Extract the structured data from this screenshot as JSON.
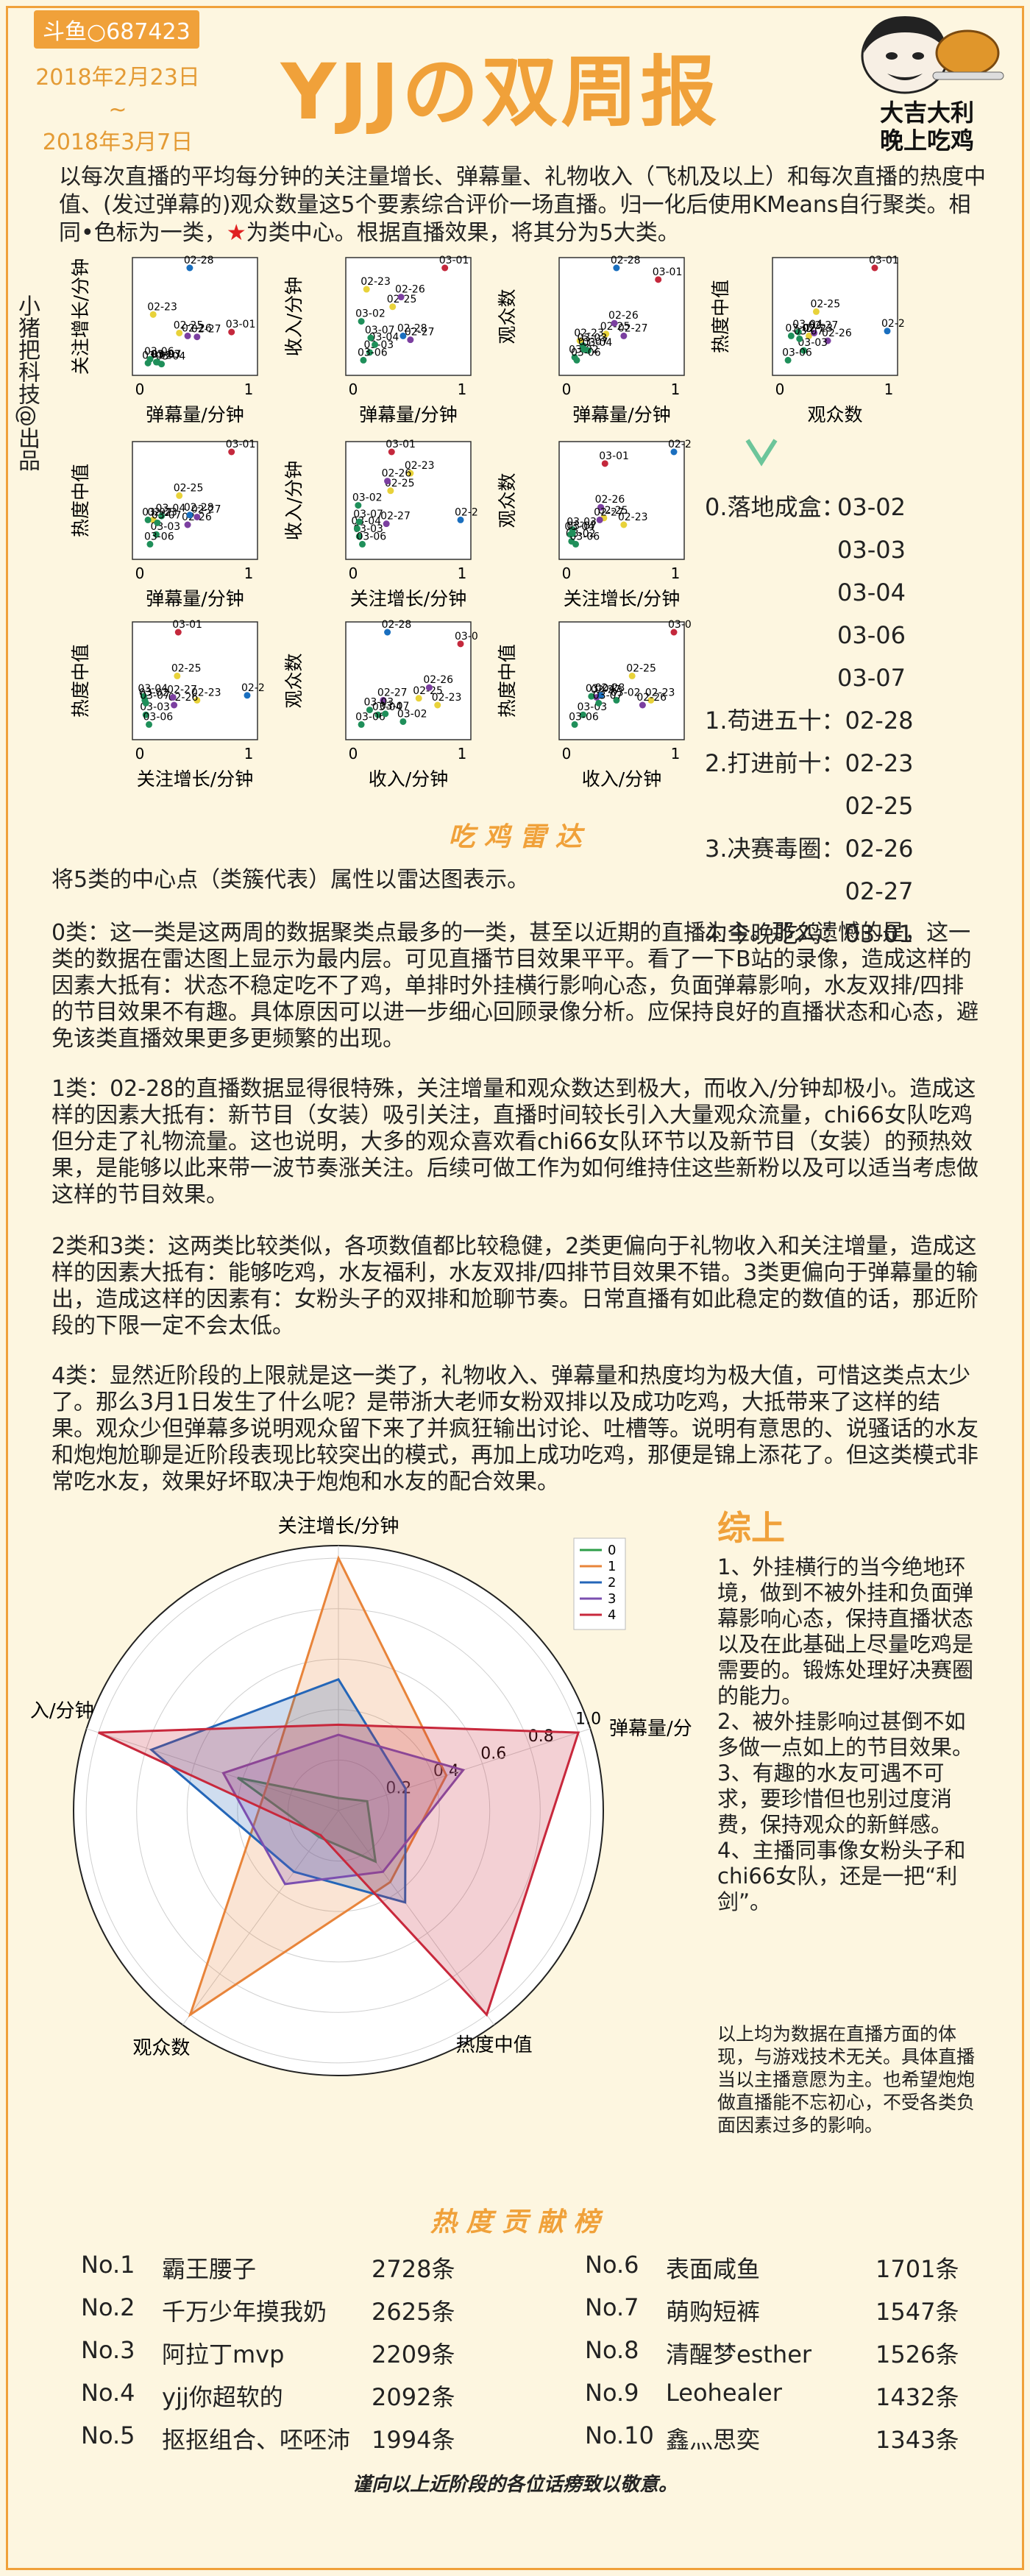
{
  "header": {
    "badge": "斗鱼○687423",
    "date_start": "2018年2月23日",
    "date_sep": "~",
    "date_end": "2018年3月7日",
    "title": "YJJの双周报",
    "mascot_line1": "大吉大利",
    "mascot_line2": "晚上吃鸡"
  },
  "intro": {
    "text_a": "以每次直播的平均每分钟的关注量增长、弹幕量、礼物收入（飞机及以上）和每次直播的热度中值、(发过弹幕的)观众数量这5个要素综合评价一场直播。归一化后使用KMeans自行聚类。相同",
    "dot": "•",
    "text_b": "色标为一类，",
    "star": "★",
    "text_c": "为类中心。根据直播效果，将其分为5大类。"
  },
  "sidebar": "小猪把科技@出品",
  "colors": [
    "#1f8f5a",
    "#1a6fbf",
    "#e8d23a",
    "#7b3fa0",
    "#c4283c",
    "#2b2b6a"
  ],
  "scatter": {
    "dates": [
      "02-23",
      "02-25",
      "02-26",
      "02-27",
      "02-28",
      "03-01",
      "03-02",
      "03-03",
      "03-04",
      "03-06",
      "03-07"
    ],
    "cluster": [
      2,
      2,
      3,
      3,
      1,
      4,
      0,
      0,
      0,
      0,
      0
    ],
    "metrics": {
      "follow": [
        0.52,
        0.33,
        0.3,
        0.29,
        1.0,
        0.34,
        0.02,
        0.03,
        0.01,
        0.06,
        0.03
      ],
      "danmaku": [
        0.1,
        0.35,
        0.43,
        0.52,
        0.45,
        0.85,
        0.05,
        0.13,
        0.18,
        0.07,
        0.14
      ],
      "gift": [
        0.78,
        0.6,
        0.7,
        0.26,
        0.3,
        1.0,
        0.45,
        0.13,
        0.21,
        0.05,
        0.28
      ],
      "viewers": [
        0.25,
        0.32,
        0.43,
        0.3,
        1.0,
        0.88,
        0.08,
        0.2,
        0.15,
        0.05,
        0.16
      ],
      "heat": [
        0.3,
        0.55,
        0.25,
        0.33,
        0.35,
        1.0,
        0.3,
        0.15,
        0.34,
        0.05,
        0.27
      ]
    },
    "axis_labels": {
      "follow": "关注增长/分钟",
      "danmaku": "弹幕量/分钟",
      "gift": "收入/分钟",
      "viewers": "观众数",
      "heat": "热度中值"
    },
    "tick_0": "0",
    "tick_1": "1"
  },
  "clusters": [
    {
      "label": "0.落地成盒：",
      "dates": [
        "03-02",
        "03-03",
        "03-04",
        "03-06",
        "03-07"
      ]
    },
    {
      "label": "1.苟进五十：",
      "dates": [
        "02-28"
      ]
    },
    {
      "label": "2.打进前十：",
      "dates": [
        "02-23",
        "02-25"
      ]
    },
    {
      "label": "3.决赛毒圈：",
      "dates": [
        "02-26",
        "02-27"
      ]
    },
    {
      "label": "4.今晚吃鸡：",
      "dates": [
        "03-01"
      ]
    }
  ],
  "radar_section": {
    "title": "吃 鸡 雷 达",
    "lead": "将5类的中心点（类簇代表）属性以雷达图表示。",
    "p0": "0类：这一类是这两周的数据聚类点最多的一类，甚至以近期的直播为主。那么遗憾的是，这一类的数据在雷达图上显示为最内层。可见直播节目效果平平。看了一下B站的录像，造成这样的因素大抵有：状态不稳定吃不了鸡，单排时外挂横行影响心态，负面弹幕影响，水友双排/四排的节目效果不有趣。具体原因可以进一步细心回顾录像分析。应保持良好的直播状态和心态，避免该类直播效果更多更频繁的出现。",
    "p1": "1类：02-28的直播数据显得很特殊，关注增量和观众数达到极大，而收入/分钟却极小。造成这样的因素大抵有：新节目（女装）吸引关注，直播时间较长引入大量观众流量，chi66女队吃鸡但分走了礼物流量。这也说明，大多的观众喜欢看chi66女队环节以及新节目（女装）的预热效果，是能够以此来带一波节奏涨关注。后续可做工作为如何维持住这些新粉以及可以适当考虑做这样的节目效果。",
    "p23": "2类和3类：这两类比较类似，各项数值都比较稳健，2类更偏向于礼物收入和关注增量，造成这样的因素大抵有：能够吃鸡，水友福利，水友双排/四排节目效果不错。3类更偏向于弹幕量的输出，造成这样的因素有：女粉头子的双排和尬聊节奏。日常直播有如此稳定的数值的话，那近阶段的下限一定不会太低。",
    "p4": "4类：显然近阶段的上限就是这一类了，礼物收入、弹幕量和热度均为极大值，可惜这类点太少了。那么3月1日发生了什么呢？是带浙大老师女粉双排以及成功吃鸡，大抵带来了这样的结果。观众少但弹幕多说明观众留下来了并疯狂输出讨论、吐槽等。说明有意思的、说骚话的水友和炮炮尬聊是近阶段表现比较突出的模式，再加上成功吃鸡，那便是锦上添花了。但这类模式非常吃水友，效果好坏取决于炮炮和水友的配合效果。"
  },
  "chart_data": {
    "type": "radar",
    "axes": [
      "关注增长/分钟",
      "弹幕量/分钟",
      "热度中值",
      "观众数",
      "收入/分钟"
    ],
    "rticks": [
      "0.2",
      "0.4",
      "0.6",
      "0.8",
      "1.0"
    ],
    "rlim": [
      0,
      1.05
    ],
    "legend_position": "top-right",
    "series": [
      {
        "name": "0",
        "color": "#2e9e4a",
        "values": [
          0.05,
          0.12,
          0.25,
          0.13,
          0.42
        ]
      },
      {
        "name": "1",
        "color": "#e8843a",
        "values": [
          1.0,
          0.45,
          0.35,
          1.0,
          0.3
        ]
      },
      {
        "name": "2",
        "color": "#2466b8",
        "values": [
          0.52,
          0.28,
          0.45,
          0.3,
          0.78
        ]
      },
      {
        "name": "3",
        "color": "#7b4fb0",
        "values": [
          0.3,
          0.52,
          0.3,
          0.36,
          0.48
        ]
      },
      {
        "name": "4",
        "color": "#c8283c",
        "values": [
          0.34,
          1.0,
          1.0,
          0.12,
          1.0
        ]
      }
    ]
  },
  "summary": {
    "title": "综上",
    "points": [
      "1、外挂横行的当今绝地环境，做到不被外挂和负面弹幕影响心态，保持直播状态以及在此基础上尽量吃鸡是需要的。锻炼处理好决赛圈的能力。",
      "2、被外挂影响过甚倒不如多做一点如上的节目效果。",
      "3、有趣的水友可遇不可求，要珍惜但也别过度消费，保持观众的新鲜感。",
      "4、主播同事像女粉头子和chi66女队，还是一把“利剑”。"
    ],
    "note": "以上均为数据在直播方面的体现，与游戏技术无关。具体直播当以主播意愿为主。也希望炮炮做直播能不忘初心，不受各类负面因素过多的影响。"
  },
  "leaderboard": {
    "title": "热 度 贡 献 榜",
    "entries": [
      {
        "rank": "No.1",
        "name": "霸王腰子",
        "count": "2728条"
      },
      {
        "rank": "No.2",
        "name": "千万少年摸我奶",
        "count": "2625条"
      },
      {
        "rank": "No.3",
        "name": "阿拉丁mvp",
        "count": "2209条"
      },
      {
        "rank": "No.4",
        "name": "yjj你超软的",
        "count": "2092条"
      },
      {
        "rank": "No.5",
        "name": "抠抠组合、呸呸沛",
        "count": "1994条"
      },
      {
        "rank": "No.6",
        "name": "表面咸鱼",
        "count": "1701条"
      },
      {
        "rank": "No.7",
        "name": "萌购短裤",
        "count": "1547条"
      },
      {
        "rank": "No.8",
        "name": "清醒梦esther",
        "count": "1526条"
      },
      {
        "rank": "No.9",
        "name": "Leohealer",
        "count": "1432条"
      },
      {
        "rank": "No.10",
        "name": "鑫灬思奕",
        "count": "1343条"
      }
    ],
    "footer": "谨向以上近阶段的各位话痨致以敬意。"
  }
}
